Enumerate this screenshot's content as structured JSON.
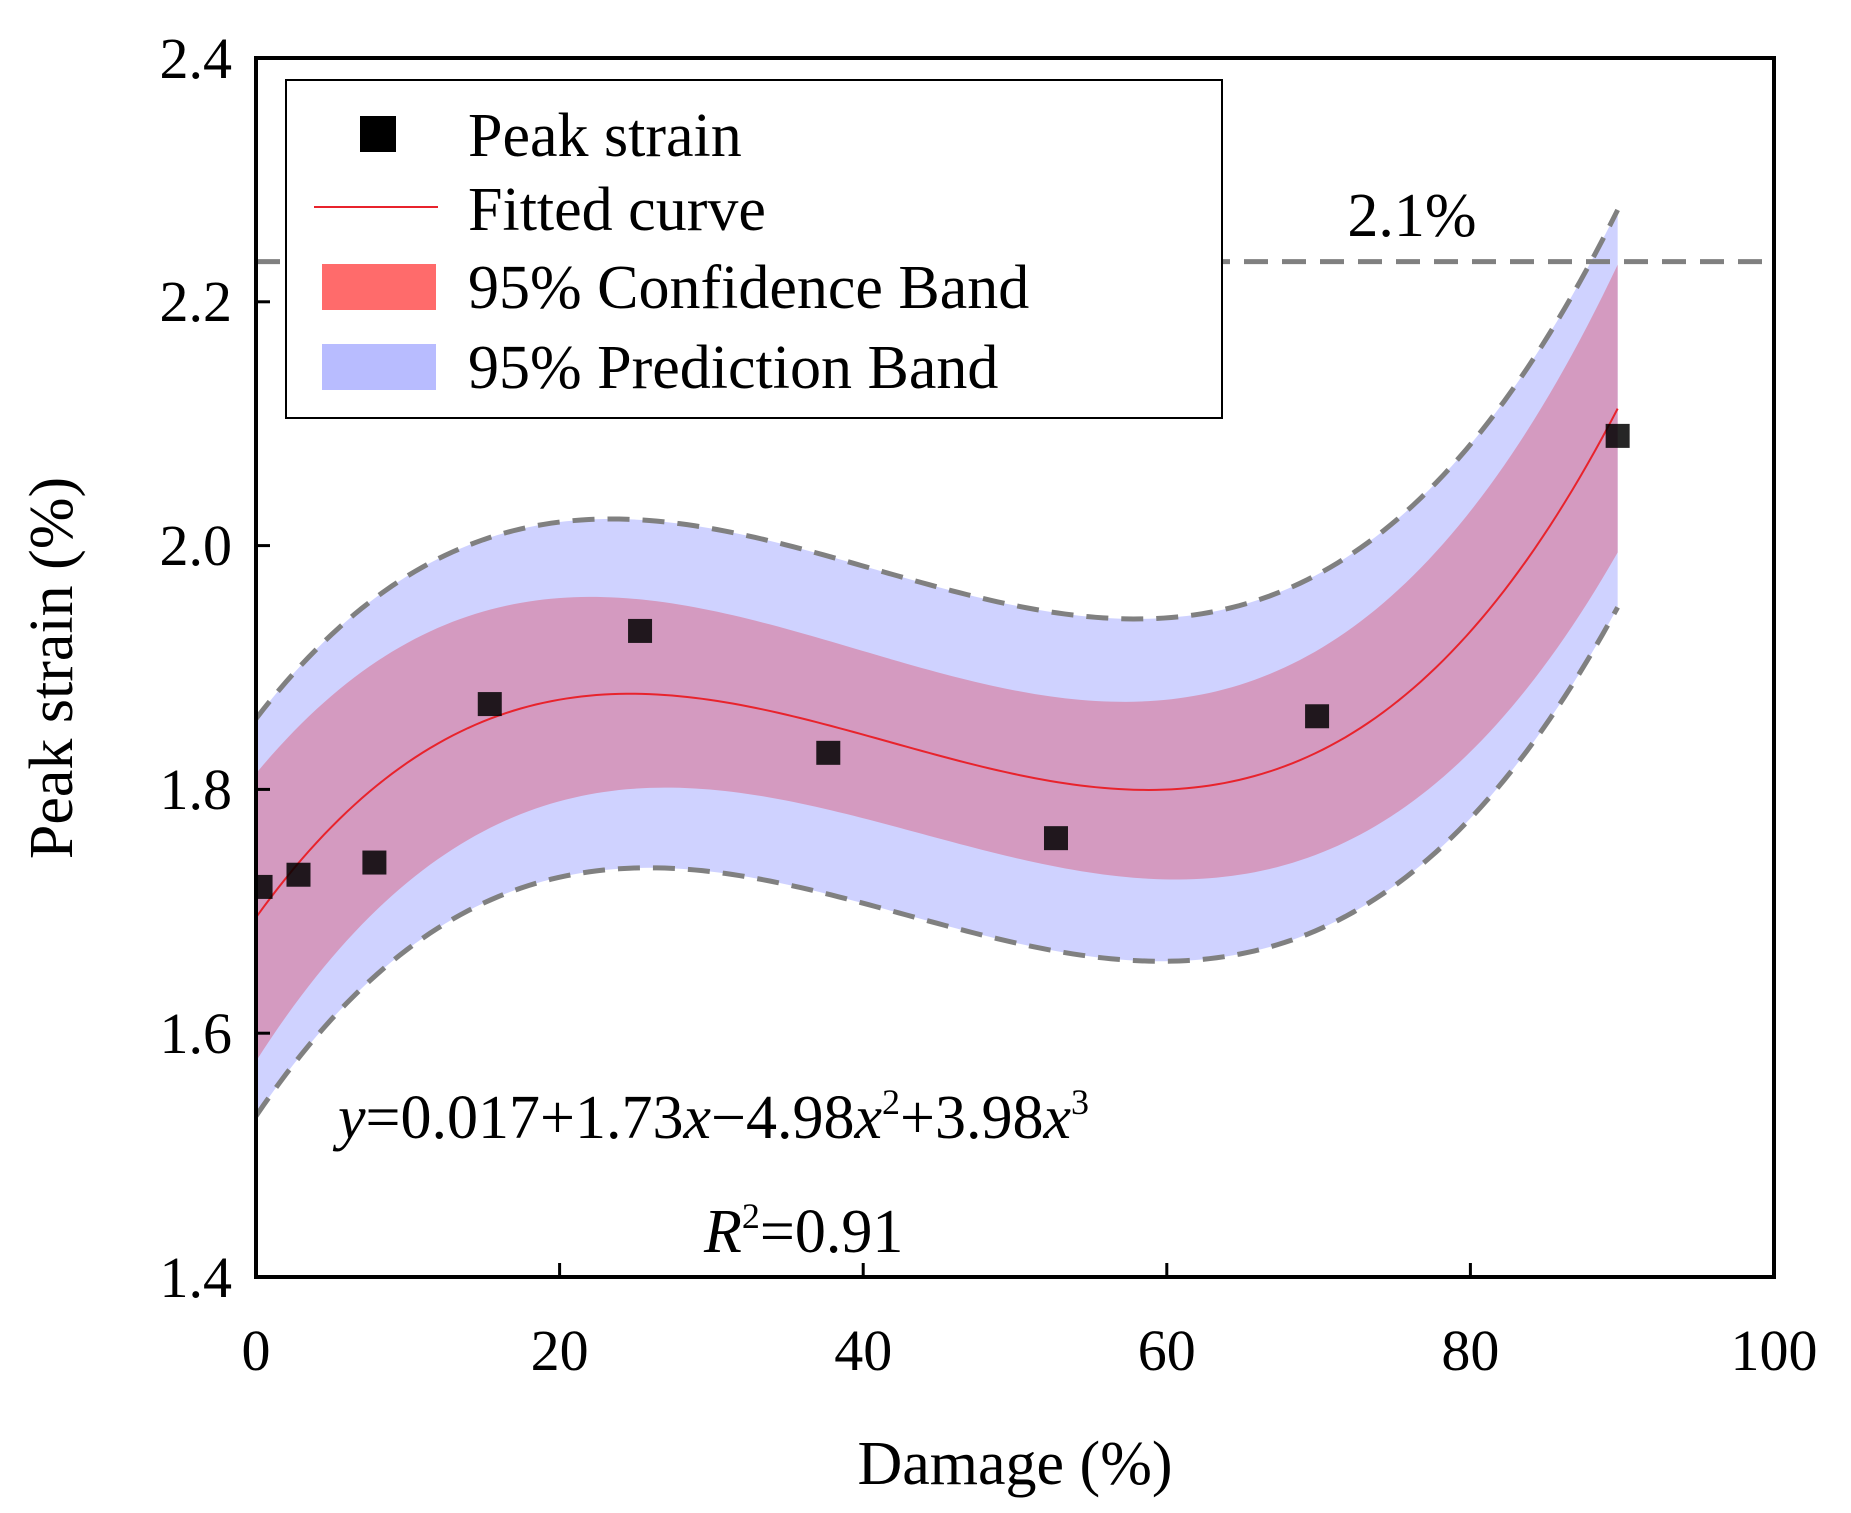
{
  "chart_data": {
    "type": "scatter",
    "xlabel": "Damage (%)",
    "ylabel": "Peak strain (%)",
    "xlim": [
      0,
      100
    ],
    "ylim": [
      1.4,
      2.4
    ],
    "xticks": [
      "0",
      "20",
      "40",
      "60",
      "80",
      "100"
    ],
    "yticks": [
      "1.4",
      "1.6",
      "1.8",
      "2.0",
      "2.2",
      "2.4"
    ],
    "points": {
      "name": "Peak strain",
      "x": [
        0.3,
        2.8,
        7.8,
        15.4,
        25.3,
        37.7,
        52.7,
        69.9,
        89.7
      ],
      "y": [
        1.72,
        1.73,
        1.74,
        1.87,
        1.93,
        1.83,
        1.76,
        1.86,
        2.09
      ]
    },
    "fit": {
      "name": "Fitted curve",
      "coefficients": [
        0.017,
        1.73,
        -4.98,
        3.98
      ],
      "x_range": [
        0,
        89.7
      ],
      "offset": 1.678
    },
    "confidence_band": {
      "name": "95% Confidence Band",
      "half_width_min": 0.068,
      "half_width_max": 0.118
    },
    "prediction_band": {
      "name": "95% Prediction Band",
      "half_width_min": 0.138,
      "half_width_max": 0.163
    },
    "reference_line": {
      "value": 2.233,
      "label": "2.1%"
    },
    "equation": {
      "y_var": "y",
      "part1": "=0.017+1.73",
      "x_var1": "x",
      "part2": "−4.98",
      "x_var2": "x",
      "exp2": "2",
      "part3": "+3.98",
      "x_var3": "x",
      "exp3": "3"
    },
    "r_squared": {
      "var": "R",
      "exp": "2",
      "value_text": "=0.91"
    },
    "legend": {
      "peak_strain": "Peak strain",
      "fitted_curve": "Fitted curve",
      "confidence_band": "95% Confidence Band",
      "prediction_band": "95% Prediction Band",
      "position": "top-left"
    },
    "colors": {
      "points": "#000000",
      "fit_line": "#e8232c",
      "confidence_fill": "#ff6b6b",
      "prediction_fill": "#b8bcff",
      "overlap_fill": "#d49ac0",
      "dashed": "#808080"
    }
  }
}
